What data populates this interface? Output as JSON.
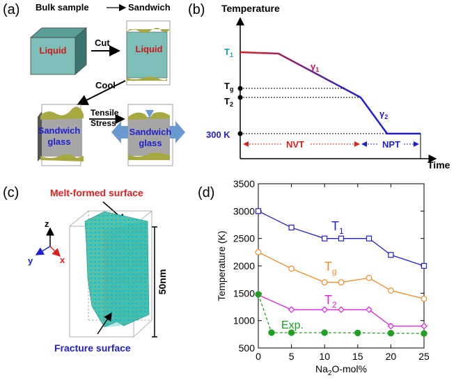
{
  "panel_a": {
    "label": "(a)",
    "bulk_sample": "Bulk sample",
    "sandwich": "Sandwich",
    "liquid_left": "Liquid",
    "liquid_right": "Liquid",
    "cut": "Cut",
    "cool": "Cool",
    "tensile": "Tensile",
    "stress": "Stress",
    "glass_left_line1": "Sandwich",
    "glass_left_line2": "glass",
    "glass_right_line1": "Sandwich",
    "glass_right_line2": "glass",
    "colors": {
      "liquid": "#7dbfb8",
      "glass": "#a6a6a6",
      "surface": "#a8a840",
      "arrow": "#6a9ad0"
    }
  },
  "panel_b": {
    "label": "(b)",
    "y_title": "Temperature",
    "x_title": "Time",
    "t1_main": "T",
    "t1_sub": "1",
    "tg_main": "T",
    "tg_sub": "g",
    "t2_main": "T",
    "t2_sub": "2",
    "t300": "300 K",
    "gamma1_main": "γ",
    "gamma1_sub": "1",
    "gamma2_main": "γ",
    "gamma2_sub": "2",
    "nvt": "NVT",
    "npt": "NPT"
  },
  "panel_c": {
    "label": "(c)",
    "melt_formed": "Melt-formed surface",
    "fracture": "Fracture surface",
    "size": "50nm",
    "axis_z": "z",
    "axis_y": "y",
    "axis_x": "x"
  },
  "chart_data": {
    "label": "(d)",
    "type": "line",
    "xlabel_main": "Na",
    "xlabel_sub": "2",
    "xlabel_rest": "O-mol%",
    "ylabel": "Temperature (K)",
    "xlim": [
      0,
      25
    ],
    "ylim": [
      500,
      3500
    ],
    "xticks": [
      0,
      5,
      10,
      15,
      20,
      25
    ],
    "yticks": [
      500,
      1000,
      1500,
      2000,
      2500,
      3000,
      3500
    ],
    "series": [
      {
        "name": "T1",
        "label_main": "T",
        "label_sub": "1",
        "color": "#1f1fd0",
        "marker": "square",
        "x": [
          0,
          5,
          10,
          12.5,
          16.7,
          20,
          25
        ],
        "values": [
          3000,
          2700,
          2500,
          2500,
          2500,
          2200,
          2000
        ]
      },
      {
        "name": "Tg",
        "label_main": "T",
        "label_sub": "g",
        "color": "#f08a24",
        "marker": "circle",
        "x": [
          0,
          5,
          10,
          12.5,
          16.7,
          20,
          25
        ],
        "values": [
          2250,
          1950,
          1700,
          1700,
          1780,
          1550,
          1400
        ]
      },
      {
        "name": "T2",
        "label_main": "T",
        "label_sub": "2",
        "color": "#e020e0",
        "marker": "diamond",
        "x": [
          0,
          5,
          10,
          12.5,
          16.7,
          20,
          25
        ],
        "values": [
          1470,
          1200,
          1200,
          1200,
          1200,
          900,
          900
        ]
      },
      {
        "name": "Exp.",
        "label_main": "Exp.",
        "label_sub": "",
        "color": "#20a020",
        "marker": "filled-circle",
        "x": [
          0,
          2,
          5,
          10,
          15,
          20,
          25
        ],
        "values": [
          1480,
          780,
          780,
          780,
          775,
          770,
          765
        ]
      }
    ]
  }
}
